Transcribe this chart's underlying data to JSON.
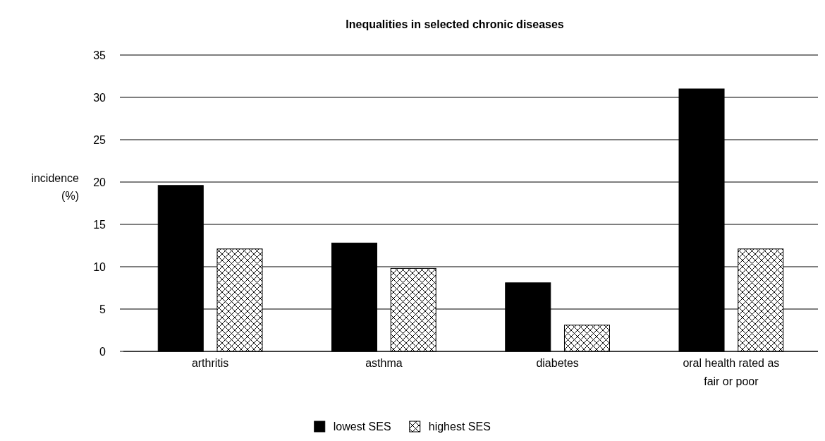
{
  "chart_data": {
    "type": "bar",
    "title": "Inequalities in selected chronic diseases",
    "ylabel": "incidence (%)",
    "categories": [
      "arthritis",
      "asthma",
      "diabetes",
      "oral health rated as fair or poor"
    ],
    "series": [
      {
        "name": "lowest SES",
        "color": "#000000",
        "values": [
          19.6,
          12.8,
          8.1,
          31
        ]
      },
      {
        "name": "highest SES",
        "color": "#ffffff",
        "values": [
          12.1,
          9.8,
          3.1,
          12.1
        ]
      }
    ],
    "ylim": [
      0,
      35
    ],
    "yticks": [
      0,
      5,
      10,
      15,
      20,
      25,
      30,
      35
    ],
    "grid": "y",
    "legend": "bottom"
  }
}
